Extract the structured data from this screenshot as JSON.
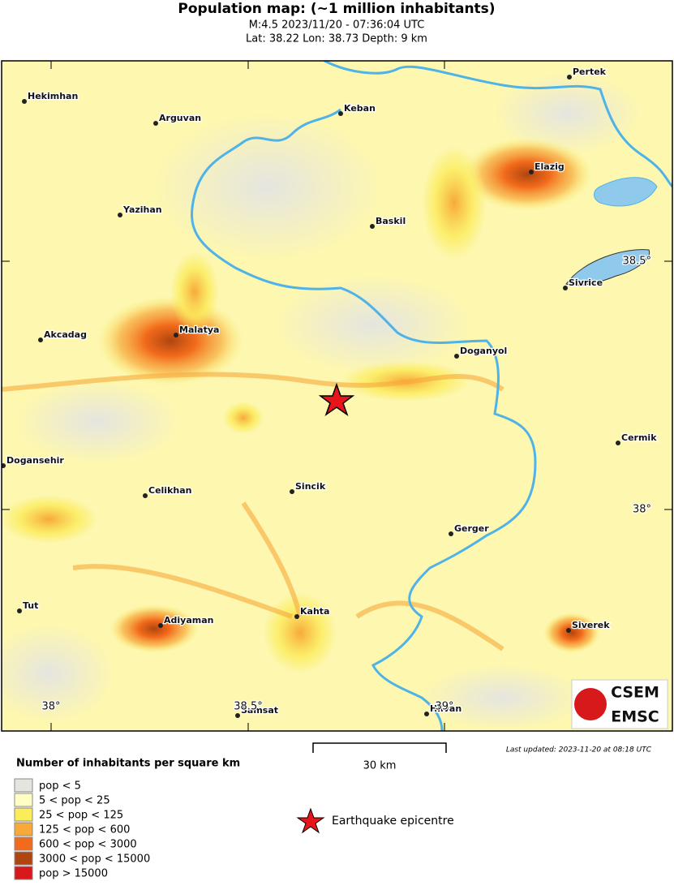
{
  "header": {
    "title": "Population map: (~1 million inhabitants)",
    "subtitle": "M:4.5 2023/11/20 - 07:36:04 UTC",
    "location": "Lat: 38.22 Lon: 38.73 Depth: 9 km"
  },
  "places": [
    {
      "name": "Hekimhan"
    },
    {
      "name": "Arguvan"
    },
    {
      "name": "Keban"
    },
    {
      "name": "Pertek"
    },
    {
      "name": "Elazig"
    },
    {
      "name": "Yazihan"
    },
    {
      "name": "Baskil"
    },
    {
      "name": "Sivrice"
    },
    {
      "name": "Malatya"
    },
    {
      "name": "Akcadag"
    },
    {
      "name": "Doganyol"
    },
    {
      "name": "Cermik"
    },
    {
      "name": "Dogansehir"
    },
    {
      "name": "Celikhan"
    },
    {
      "name": "Sincik"
    },
    {
      "name": "Gerger"
    },
    {
      "name": "Tut"
    },
    {
      "name": "Adiyaman"
    },
    {
      "name": "Kahta"
    },
    {
      "name": "Siverek"
    },
    {
      "name": "Samsat"
    },
    {
      "name": "Hilvan"
    }
  ],
  "graticule": {
    "lat": [
      "38.5°",
      "38°"
    ],
    "lon": [
      "38°",
      "38.5°",
      "39°"
    ]
  },
  "scale": {
    "label": "30 km"
  },
  "legend": {
    "title": "Number of inhabitants per square km",
    "items": [
      {
        "label": "pop < 5",
        "color": "#e5e5e0"
      },
      {
        "label": "5 < pop < 25",
        "color": "#ffffc4"
      },
      {
        "label": "25 < pop < 125",
        "color": "#fbec5a"
      },
      {
        "label": "125 < pop < 600",
        "color": "#f7a93a"
      },
      {
        "label": "600 < pop < 3000",
        "color": "#f26a1b"
      },
      {
        "label": "3000 < pop < 15000",
        "color": "#b0460f"
      },
      {
        "label": "pop > 15000",
        "color": "#d7191c"
      }
    ]
  },
  "epicentre": {
    "label": "Earthquake epicentre"
  },
  "updated": "Last updated: 2023-11-20 at 08:18 UTC",
  "logo": {
    "top": "CSEM",
    "bottom": "EMSC"
  }
}
